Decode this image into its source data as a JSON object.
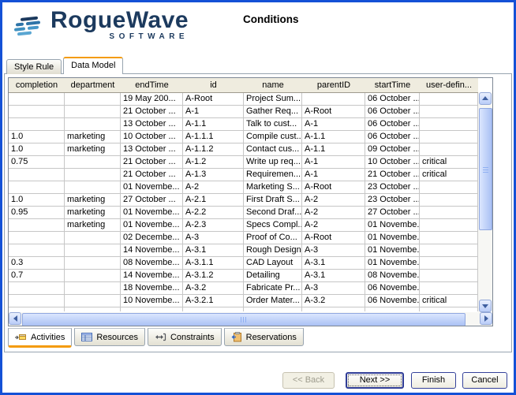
{
  "header": {
    "title": "Conditions"
  },
  "logo": {
    "brand": "RogueWave",
    "subtitle": "SOFTWARE"
  },
  "top_tabs": [
    {
      "label": "Style Rule",
      "selected": false
    },
    {
      "label": "Data Model",
      "selected": true
    }
  ],
  "table": {
    "columns": [
      "completion",
      "department",
      "endTime",
      "id",
      "name",
      "parentID",
      "startTime",
      "user-defin..."
    ],
    "rows": [
      [
        "",
        "",
        "19 May 200...",
        "A-Root",
        "Project Sum...",
        "",
        "06 October ...",
        ""
      ],
      [
        "",
        "",
        "21 October ...",
        "A-1",
        "Gather Req...",
        "A-Root",
        "06 October ...",
        ""
      ],
      [
        "",
        "",
        "13 October ...",
        "A-1.1",
        "Talk to cust...",
        "A-1",
        "06 October ...",
        ""
      ],
      [
        "1.0",
        "marketing",
        "10 October ...",
        "A-1.1.1",
        "Compile cust...",
        "A-1.1",
        "06 October ...",
        ""
      ],
      [
        "1.0",
        "marketing",
        "13 October ...",
        "A-1.1.2",
        "Contact cus...",
        "A-1.1",
        "09 October ...",
        ""
      ],
      [
        "0.75",
        "",
        "21 October ...",
        "A-1.2",
        "Write up req...",
        "A-1",
        "10 October ...",
        "critical"
      ],
      [
        "",
        "",
        "21 October ...",
        "A-1.3",
        "Requiremen...",
        "A-1",
        "21 October ...",
        "critical"
      ],
      [
        "",
        "",
        "01 Novembe...",
        "A-2",
        "Marketing S...",
        "A-Root",
        "23 October ...",
        ""
      ],
      [
        "1.0",
        "marketing",
        "27 October ...",
        "A-2.1",
        "First Draft S...",
        "A-2",
        "23 October ...",
        ""
      ],
      [
        "0.95",
        "marketing",
        "01 Novembe...",
        "A-2.2",
        "Second Draf...",
        "A-2",
        "27 October ...",
        ""
      ],
      [
        "",
        "marketing",
        "01 Novembe...",
        "A-2.3",
        "Specs Compl...",
        "A-2",
        "01 Novembe...",
        ""
      ],
      [
        "",
        "",
        "02 Decembe...",
        "A-3",
        "Proof of Co...",
        "A-Root",
        "01 Novembe...",
        ""
      ],
      [
        "",
        "",
        "14 Novembe...",
        "A-3.1",
        "Rough Design",
        "A-3",
        "01 Novembe...",
        ""
      ],
      [
        "0.3",
        "",
        "08 Novembe...",
        "A-3.1.1",
        "CAD Layout",
        "A-3.1",
        "01 Novembe...",
        ""
      ],
      [
        "0.7",
        "",
        "14 Novembe...",
        "A-3.1.2",
        "Detailing",
        "A-3.1",
        "08 Novembe...",
        ""
      ],
      [
        "",
        "",
        "18 Novembe...",
        "A-3.2",
        "Fabricate Pr...",
        "A-3",
        "06 Novembe...",
        ""
      ],
      [
        "",
        "",
        "10 Novembe...",
        "A-3.2.1",
        "Order Mater...",
        "A-3.2",
        "06 Novembe...",
        "critical"
      ]
    ]
  },
  "bottom_tabs": [
    {
      "label": "Activities",
      "icon": "activities-icon",
      "selected": true
    },
    {
      "label": "Resources",
      "icon": "resources-icon",
      "selected": false
    },
    {
      "label": "Constraints",
      "icon": "constraints-icon",
      "selected": false
    },
    {
      "label": "Reservations",
      "icon": "reservations-icon",
      "selected": false
    }
  ],
  "buttons": [
    {
      "label": "<< Back",
      "state": "disabled"
    },
    {
      "label": "Next >>",
      "state": "focused"
    },
    {
      "label": "Finish",
      "state": "normal"
    },
    {
      "label": "Cancel",
      "state": "normal"
    }
  ],
  "colors": {
    "window_border": "#1451d6",
    "tab_accent_orange": "#f49b0c",
    "table_header_bg": "#efecdf",
    "logo_navy": "#1c3a5e",
    "logo_blue": "#4596c8",
    "scrollbar_blue": "#aac1f4"
  }
}
